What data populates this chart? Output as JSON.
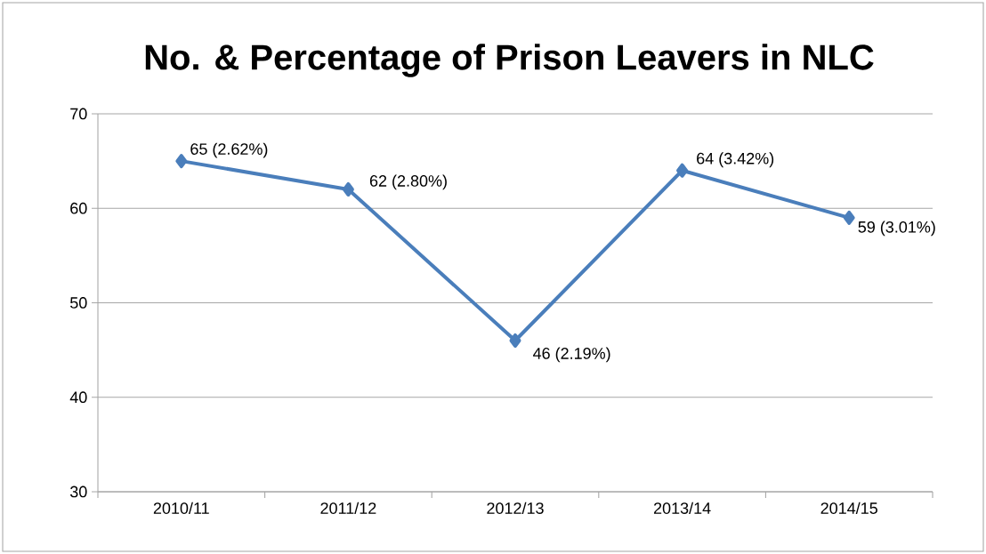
{
  "chart_data": {
    "type": "line",
    "title": "No. & Percentage of Prison Leavers in NLC",
    "categories": [
      "2010/11",
      "2011/12",
      "2012/13",
      "2013/14",
      "2014/15"
    ],
    "series": [
      {
        "color": "#4a7ebb",
        "values": [
          65,
          62,
          46,
          64,
          59
        ],
        "value_labels": [
          "65  (2.62%)",
          "62 (2.80%)",
          "46 (2.19%)",
          "64 (3.42%)",
          "59 (3.01%)"
        ]
      }
    ],
    "ylim": [
      30,
      70
    ],
    "yticks": [
      30,
      40,
      50,
      60,
      70
    ],
    "grid": "y",
    "marker": "diamond",
    "line_style": "solid"
  }
}
